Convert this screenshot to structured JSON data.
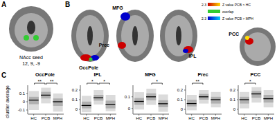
{
  "panels": {
    "A": {
      "label": "A",
      "seed": "NAcc seed",
      "coords": "12, 9, -9"
    },
    "B": {
      "label": "B",
      "regions": [
        "OccPole",
        "MFG",
        "Prec",
        "IPL",
        "PCC"
      ],
      "colorbars": [
        {
          "label": "Z value PCB > HC",
          "min": 2.3,
          "colors": [
            "#cc0000",
            "#ffdd00"
          ]
        },
        {
          "label": "overlap",
          "colors": [
            "#33cc33",
            "#33cc33"
          ]
        },
        {
          "label": "Z value PCB > MPH",
          "min": 2.3,
          "colors": [
            "#0000cc",
            "#00ccff"
          ]
        }
      ]
    },
    "C": {
      "label": "C",
      "y_label": "cluster average"
    }
  },
  "chart_data": [
    {
      "type": "box",
      "title": "OccPole",
      "categories": [
        "HC",
        "PCB",
        "MPH"
      ],
      "median": [
        0.02,
        0.08,
        0.0
      ],
      "q1": [
        -0.03,
        0.04,
        -0.05
      ],
      "q3": [
        0.06,
        0.12,
        0.04
      ],
      "whisker_low": [
        -0.1,
        -0.02,
        -0.12
      ],
      "whisker_high": [
        0.13,
        0.17,
        0.1
      ],
      "ylim": [
        -0.15,
        0.2
      ],
      "yticks": [
        -0.1,
        0,
        0.1
      ],
      "color": "#b0b0b0",
      "annotations": [
        {
          "from": "HC",
          "to": "PCB",
          "label": "**"
        },
        {
          "from": "PCB",
          "to": "MPH",
          "label": "**"
        }
      ]
    },
    {
      "type": "box",
      "title": "IPL",
      "categories": [
        "HC",
        "PCB",
        "MPH"
      ],
      "median": [
        0.04,
        0.12,
        0.05
      ],
      "q1": [
        0.01,
        0.09,
        0.01
      ],
      "q3": [
        0.08,
        0.15,
        0.09
      ],
      "whisker_low": [
        -0.03,
        0.05,
        -0.02
      ],
      "whisker_high": [
        0.14,
        0.2,
        0.15
      ],
      "ylim": [
        -0.05,
        0.25
      ],
      "yticks": [
        0,
        0.1,
        0.2
      ],
      "color": "#b0b0b0",
      "annotations": [
        {
          "from": "HC",
          "to": "PCB",
          "label": "*"
        },
        {
          "from": "PCB",
          "to": "MPH",
          "label": "*"
        }
      ]
    },
    {
      "type": "box",
      "title": "MFG",
      "categories": [
        "HC",
        "PCB",
        "MPH"
      ],
      "median": [
        0.06,
        0.1,
        0.04
      ],
      "q1": [
        0.03,
        0.07,
        0.01
      ],
      "q3": [
        0.09,
        0.13,
        0.07
      ],
      "whisker_low": [
        -0.01,
        0.03,
        -0.03
      ],
      "whisker_high": [
        0.14,
        0.17,
        0.12
      ],
      "ylim": [
        -0.05,
        0.2
      ],
      "yticks": [
        0,
        0.1
      ],
      "color": "#b0b0b0",
      "annotations": [
        {
          "from": "PCB",
          "to": "MPH",
          "label": "*"
        }
      ]
    },
    {
      "type": "box",
      "title": "Prec",
      "categories": [
        "HC",
        "PCB",
        "MPH"
      ],
      "median": [
        0.06,
        0.13,
        0.1
      ],
      "q1": [
        0.03,
        0.1,
        0.06
      ],
      "q3": [
        0.1,
        0.16,
        0.13
      ],
      "whisker_low": [
        -0.01,
        0.06,
        0.02
      ],
      "whisker_high": [
        0.15,
        0.2,
        0.18
      ],
      "ylim": [
        -0.05,
        0.25
      ],
      "yticks": [
        0,
        0.1,
        0.2
      ],
      "color": "#b0b0b0",
      "annotations": [
        {
          "from": "HC",
          "to": "PCB",
          "label": "**"
        }
      ]
    },
    {
      "type": "box",
      "title": "PCC",
      "categories": [
        "HC",
        "PCB",
        "MPH"
      ],
      "median": [
        0.1,
        0.16,
        0.11
      ],
      "q1": [
        0.06,
        0.12,
        0.07
      ],
      "q3": [
        0.13,
        0.19,
        0.15
      ],
      "whisker_low": [
        0.01,
        0.07,
        0.02
      ],
      "whisker_high": [
        0.18,
        0.23,
        0.2
      ],
      "ylim": [
        -0.05,
        0.25
      ],
      "yticks": [
        0,
        0.1,
        0.2
      ],
      "color": "#b0b0b0",
      "annotations": [
        {
          "from": "HC",
          "to": "PCB",
          "label": "*"
        }
      ]
    }
  ]
}
